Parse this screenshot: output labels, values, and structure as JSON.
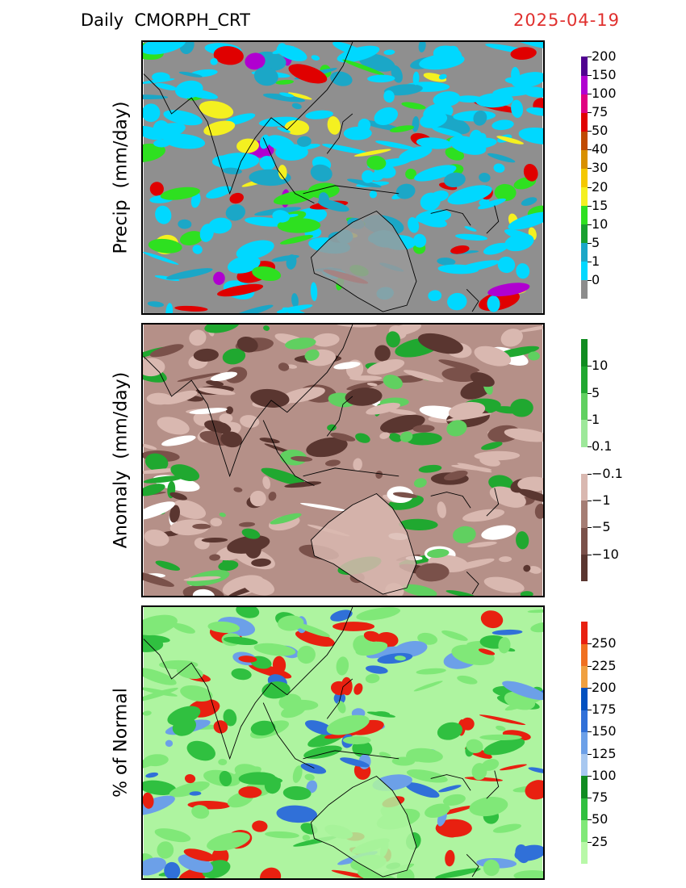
{
  "header": {
    "title": "Daily  CMORPH_CRT",
    "date": "2025-04-19"
  },
  "colors": {
    "land_gray": "#9a9a9a",
    "coast": "#000000",
    "date": "#e0302e"
  },
  "panels": [
    {
      "id": "precip",
      "ylabel": "Precip  (mm/day)",
      "background": "#8f8f8f",
      "scale": {
        "labels": [
          "0",
          "1",
          "5",
          "10",
          "15",
          "20",
          "30",
          "40",
          "50",
          "75",
          "100",
          "150",
          "200"
        ],
        "colors": [
          "#8c8c8c",
          "#00d8ff",
          "#1ba7c7",
          "#18a030",
          "#2ee020",
          "#f4f020",
          "#f4c800",
          "#d89000",
          "#c04a00",
          "#e00000",
          "#e00080",
          "#b000d0",
          "#500090"
        ]
      }
    },
    {
      "id": "anomaly",
      "ylabel": "Anomaly  (mm/day)",
      "background": "#b59088",
      "scale": {
        "labels": [
          "−10",
          "−5",
          "−1",
          "−0.1",
          "0.1",
          "1",
          "5",
          "10"
        ],
        "colors": [
          "#5a3630",
          "#7a514a",
          "#a57d74",
          "#d9b8b0",
          "#ffffff",
          "#9de89a",
          "#60d060",
          "#20a830",
          "#108c20"
        ]
      }
    },
    {
      "id": "pct",
      "ylabel": "% of Normal",
      "background": "#aef4a0",
      "scale": {
        "labels": [
          "25",
          "50",
          "75",
          "100",
          "125",
          "150",
          "175",
          "200",
          "225",
          "250"
        ],
        "colors": [
          "#b8f8a8",
          "#80e878",
          "#30c040",
          "#108c20",
          "#a8c8f0",
          "#6ca0e8",
          "#3070d8",
          "#0050c0",
          "#f0a040",
          "#f07020",
          "#e82010"
        ]
      }
    }
  ]
}
